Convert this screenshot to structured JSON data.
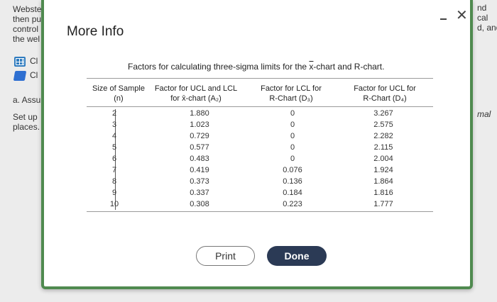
{
  "background": {
    "left_lines": [
      "Webste",
      "then pu",
      "control",
      "the wel"
    ],
    "icon_rows": [
      {
        "icon": "grid-icon",
        "label": "Cl"
      },
      {
        "icon": "edit-icon",
        "label": "Cl"
      }
    ],
    "assume_text": "a. Assu",
    "setup_lines": [
      "Set up",
      "places."
    ],
    "right_lines": [
      "nd",
      "cal",
      "d, and"
    ],
    "right_mal": "mal"
  },
  "modal": {
    "title": "More Info",
    "heading_prefix": "Factors for calculating three-sigma limits for the ",
    "heading_xbar": "x",
    "heading_suffix": "-chart and R-chart.",
    "columns": [
      {
        "line1": "Size of Sample",
        "line2": "(n)"
      },
      {
        "line1": "Factor for UCL and LCL",
        "line2": "for x̄-chart (A₂)"
      },
      {
        "line1": "Factor for LCL for",
        "line2": "R-Chart (D₃)"
      },
      {
        "line1": "Factor for UCL for",
        "line2": "R-Chart (D₄)"
      }
    ],
    "rows": {
      "n": [
        "2",
        "3",
        "4",
        "5",
        "6",
        "7",
        "8",
        "9",
        "10"
      ],
      "a2": [
        "1.880",
        "1.023",
        "0.729",
        "0.577",
        "0.483",
        "0.419",
        "0.373",
        "0.337",
        "0.308"
      ],
      "d3": [
        "0",
        "0",
        "0",
        "0",
        "0",
        "0.076",
        "0.136",
        "0.184",
        "0.223"
      ],
      "d4": [
        "3.267",
        "2.575",
        "2.282",
        "2.115",
        "2.004",
        "1.924",
        "1.864",
        "1.816",
        "1.777"
      ]
    },
    "print_label": "Print",
    "done_label": "Done"
  },
  "colors": {
    "accent_border": "#4f8a4f",
    "done_button": "#2b3a55"
  }
}
